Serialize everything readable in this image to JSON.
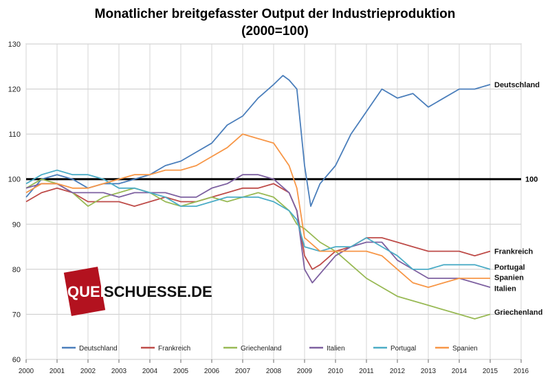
{
  "chart_data": {
    "type": "line",
    "title_line1": "Monatlicher breitgefasster  Output der Industrieproduktion",
    "title_line2": "(2000=100)",
    "xlim": [
      2000,
      2016
    ],
    "ylim": [
      60,
      130
    ],
    "x_ticks": [
      "2000",
      "2001",
      "2002",
      "2003",
      "2004",
      "2005",
      "2006",
      "2007",
      "2008",
      "2009",
      "2010",
      "2011",
      "2012",
      "2013",
      "2014",
      "2015",
      "2016"
    ],
    "y_ticks": [
      "60",
      "70",
      "80",
      "90",
      "100",
      "110",
      "120",
      "130"
    ],
    "grid": true,
    "legend_position": "bottom",
    "reference_line": {
      "value": 100,
      "label": "100"
    },
    "watermark": "QUERSCHUESSE.DE",
    "series": [
      {
        "name": "Deutschland",
        "color": "#4a7ebb",
        "end_label": "Deutschland",
        "points": [
          [
            2000.0,
            96
          ],
          [
            2000.5,
            100
          ],
          [
            2001.0,
            101
          ],
          [
            2001.5,
            100
          ],
          [
            2002.0,
            98
          ],
          [
            2002.5,
            99
          ],
          [
            2003.0,
            99
          ],
          [
            2003.5,
            100
          ],
          [
            2004.0,
            101
          ],
          [
            2004.5,
            103
          ],
          [
            2005.0,
            104
          ],
          [
            2005.5,
            106
          ],
          [
            2006.0,
            108
          ],
          [
            2006.5,
            112
          ],
          [
            2007.0,
            114
          ],
          [
            2007.5,
            118
          ],
          [
            2008.0,
            121
          ],
          [
            2008.3,
            123
          ],
          [
            2008.5,
            122
          ],
          [
            2008.75,
            120
          ],
          [
            2009.0,
            103
          ],
          [
            2009.2,
            94
          ],
          [
            2009.5,
            99
          ],
          [
            2010.0,
            103
          ],
          [
            2010.5,
            110
          ],
          [
            2011.0,
            115
          ],
          [
            2011.5,
            120
          ],
          [
            2012.0,
            118
          ],
          [
            2012.5,
            119
          ],
          [
            2013.0,
            116
          ],
          [
            2013.5,
            118
          ],
          [
            2014.0,
            120
          ],
          [
            2014.5,
            120
          ],
          [
            2015.0,
            121
          ]
        ]
      },
      {
        "name": "Frankreich",
        "color": "#be4b48",
        "end_label": "Frankreich",
        "points": [
          [
            2000.0,
            95
          ],
          [
            2000.5,
            97
          ],
          [
            2001.0,
            98
          ],
          [
            2001.5,
            97
          ],
          [
            2002.0,
            95
          ],
          [
            2002.5,
            95
          ],
          [
            2003.0,
            95
          ],
          [
            2003.5,
            94
          ],
          [
            2004.0,
            95
          ],
          [
            2004.5,
            96
          ],
          [
            2005.0,
            95
          ],
          [
            2005.5,
            95
          ],
          [
            2006.0,
            96
          ],
          [
            2006.5,
            97
          ],
          [
            2007.0,
            98
          ],
          [
            2007.5,
            98
          ],
          [
            2008.0,
            99
          ],
          [
            2008.5,
            97
          ],
          [
            2008.75,
            93
          ],
          [
            2009.0,
            83
          ],
          [
            2009.25,
            80
          ],
          [
            2009.5,
            81
          ],
          [
            2010.0,
            84
          ],
          [
            2010.5,
            85
          ],
          [
            2011.0,
            87
          ],
          [
            2011.5,
            87
          ],
          [
            2012.0,
            86
          ],
          [
            2012.5,
            85
          ],
          [
            2013.0,
            84
          ],
          [
            2013.5,
            84
          ],
          [
            2014.0,
            84
          ],
          [
            2014.5,
            83
          ],
          [
            2015.0,
            84
          ]
        ]
      },
      {
        "name": "Griechenland",
        "color": "#98b954",
        "end_label": "Griechenland",
        "points": [
          [
            2000.0,
            98
          ],
          [
            2000.5,
            100
          ],
          [
            2001.0,
            99
          ],
          [
            2001.5,
            97
          ],
          [
            2002.0,
            94
          ],
          [
            2002.5,
            96
          ],
          [
            2003.0,
            97
          ],
          [
            2003.5,
            98
          ],
          [
            2004.0,
            97
          ],
          [
            2004.5,
            95
          ],
          [
            2005.0,
            94
          ],
          [
            2005.5,
            95
          ],
          [
            2006.0,
            96
          ],
          [
            2006.5,
            95
          ],
          [
            2007.0,
            96
          ],
          [
            2007.5,
            97
          ],
          [
            2008.0,
            96
          ],
          [
            2008.5,
            93
          ],
          [
            2008.75,
            90
          ],
          [
            2009.0,
            89
          ],
          [
            2009.5,
            86
          ],
          [
            2010.0,
            84
          ],
          [
            2010.5,
            81
          ],
          [
            2011.0,
            78
          ],
          [
            2011.5,
            76
          ],
          [
            2012.0,
            74
          ],
          [
            2012.5,
            73
          ],
          [
            2013.0,
            72
          ],
          [
            2013.5,
            71
          ],
          [
            2014.0,
            70
          ],
          [
            2014.5,
            69
          ],
          [
            2015.0,
            70
          ]
        ]
      },
      {
        "name": "Italien",
        "color": "#7d60a0",
        "end_label": "Italien",
        "points": [
          [
            2000.0,
            98
          ],
          [
            2000.5,
            99
          ],
          [
            2001.0,
            99
          ],
          [
            2001.5,
            97
          ],
          [
            2002.0,
            97
          ],
          [
            2002.5,
            97
          ],
          [
            2003.0,
            96
          ],
          [
            2003.5,
            97
          ],
          [
            2004.0,
            97
          ],
          [
            2004.5,
            97
          ],
          [
            2005.0,
            96
          ],
          [
            2005.5,
            96
          ],
          [
            2006.0,
            98
          ],
          [
            2006.5,
            99
          ],
          [
            2007.0,
            101
          ],
          [
            2007.5,
            101
          ],
          [
            2008.0,
            100
          ],
          [
            2008.5,
            97
          ],
          [
            2008.75,
            93
          ],
          [
            2009.0,
            80
          ],
          [
            2009.25,
            77
          ],
          [
            2009.5,
            79
          ],
          [
            2010.0,
            83
          ],
          [
            2010.5,
            85
          ],
          [
            2011.0,
            86
          ],
          [
            2011.5,
            86
          ],
          [
            2012.0,
            82
          ],
          [
            2012.5,
            80
          ],
          [
            2013.0,
            78
          ],
          [
            2013.5,
            78
          ],
          [
            2014.0,
            78
          ],
          [
            2014.5,
            77
          ],
          [
            2015.0,
            76
          ]
        ]
      },
      {
        "name": "Portugal",
        "color": "#4bacc6",
        "end_label": "Portugal",
        "points": [
          [
            2000.0,
            99
          ],
          [
            2000.5,
            101
          ],
          [
            2001.0,
            102
          ],
          [
            2001.5,
            101
          ],
          [
            2002.0,
            101
          ],
          [
            2002.5,
            100
          ],
          [
            2003.0,
            98
          ],
          [
            2003.5,
            98
          ],
          [
            2004.0,
            97
          ],
          [
            2004.5,
            96
          ],
          [
            2005.0,
            94
          ],
          [
            2005.5,
            94
          ],
          [
            2006.0,
            95
          ],
          [
            2006.5,
            96
          ],
          [
            2007.0,
            96
          ],
          [
            2007.5,
            96
          ],
          [
            2008.0,
            95
          ],
          [
            2008.5,
            93
          ],
          [
            2008.75,
            91
          ],
          [
            2009.0,
            85
          ],
          [
            2009.5,
            84
          ],
          [
            2010.0,
            85
          ],
          [
            2010.5,
            85
          ],
          [
            2011.0,
            87
          ],
          [
            2011.5,
            85
          ],
          [
            2012.0,
            83
          ],
          [
            2012.5,
            80
          ],
          [
            2013.0,
            80
          ],
          [
            2013.5,
            81
          ],
          [
            2014.0,
            81
          ],
          [
            2014.5,
            81
          ],
          [
            2015.0,
            80
          ]
        ]
      },
      {
        "name": "Spanien",
        "color": "#f79646",
        "end_label": "Spanien",
        "points": [
          [
            2000.0,
            97
          ],
          [
            2000.5,
            99
          ],
          [
            2001.0,
            99
          ],
          [
            2001.5,
            98
          ],
          [
            2002.0,
            98
          ],
          [
            2002.5,
            99
          ],
          [
            2003.0,
            100
          ],
          [
            2003.5,
            101
          ],
          [
            2004.0,
            101
          ],
          [
            2004.5,
            102
          ],
          [
            2005.0,
            102
          ],
          [
            2005.5,
            103
          ],
          [
            2006.0,
            105
          ],
          [
            2006.5,
            107
          ],
          [
            2007.0,
            110
          ],
          [
            2007.5,
            109
          ],
          [
            2008.0,
            108
          ],
          [
            2008.5,
            103
          ],
          [
            2008.75,
            98
          ],
          [
            2009.0,
            87
          ],
          [
            2009.5,
            84
          ],
          [
            2010.0,
            84
          ],
          [
            2010.5,
            84
          ],
          [
            2011.0,
            84
          ],
          [
            2011.5,
            83
          ],
          [
            2012.0,
            80
          ],
          [
            2012.5,
            77
          ],
          [
            2013.0,
            76
          ],
          [
            2013.5,
            77
          ],
          [
            2014.0,
            78
          ],
          [
            2014.5,
            78
          ],
          [
            2015.0,
            78
          ]
        ]
      }
    ]
  }
}
